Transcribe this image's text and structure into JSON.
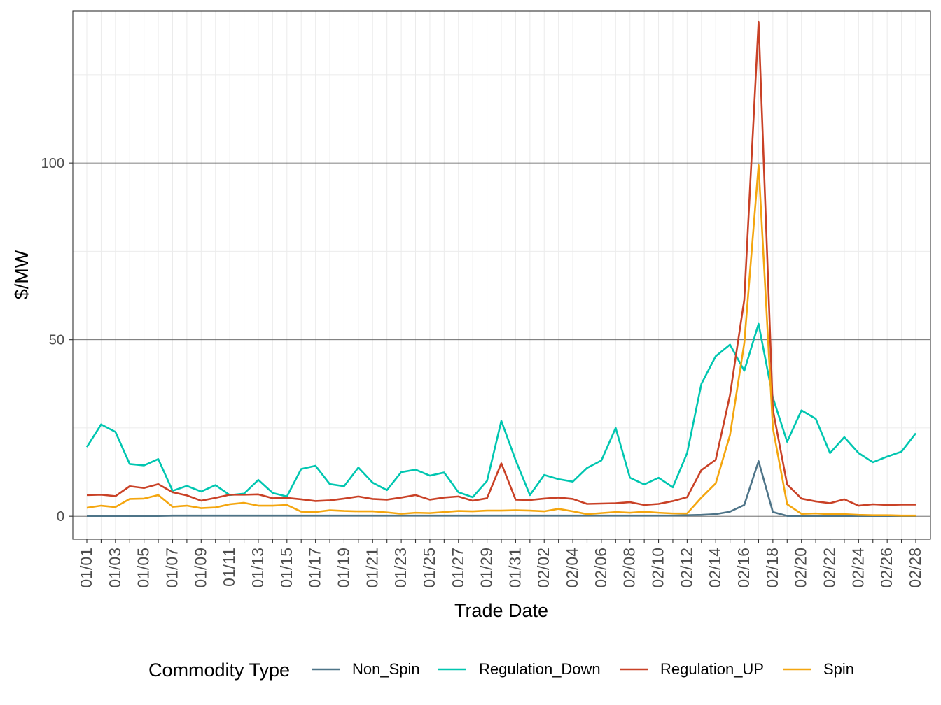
{
  "chart_data": {
    "type": "line",
    "xlabel": "Trade Date",
    "ylabel": "$/MW",
    "ylim": [
      -6.5,
      143
    ],
    "y_major_ticks": [
      0,
      50,
      100
    ],
    "y_tick_labels": [
      "0",
      "50",
      "100"
    ],
    "grid": true,
    "legend_position": "bottom",
    "legend_title": "Commodity Type",
    "x": [
      "01/01",
      "01/02",
      "01/03",
      "01/04",
      "01/05",
      "01/06",
      "01/07",
      "01/08",
      "01/09",
      "01/10",
      "01/11",
      "01/12",
      "01/13",
      "01/14",
      "01/15",
      "01/16",
      "01/17",
      "01/18",
      "01/19",
      "01/20",
      "01/21",
      "01/22",
      "01/23",
      "01/24",
      "01/25",
      "01/26",
      "01/27",
      "01/28",
      "01/29",
      "01/30",
      "01/31",
      "02/01",
      "02/02",
      "02/03",
      "02/04",
      "02/05",
      "02/06",
      "02/07",
      "02/08",
      "02/09",
      "02/10",
      "02/11",
      "02/12",
      "02/13",
      "02/14",
      "02/15",
      "02/16",
      "02/17",
      "02/18",
      "02/19",
      "02/20",
      "02/21",
      "02/22",
      "02/23",
      "02/24",
      "02/25",
      "02/26",
      "02/27",
      "02/28"
    ],
    "x_tick_labels": [
      "01/01",
      "01/03",
      "01/05",
      "01/07",
      "01/09",
      "01/11",
      "01/13",
      "01/15",
      "01/17",
      "01/19",
      "01/21",
      "01/23",
      "01/25",
      "01/27",
      "01/29",
      "01/31",
      "02/02",
      "02/04",
      "02/06",
      "02/08",
      "02/10",
      "02/12",
      "02/14",
      "02/16",
      "02/18",
      "02/20",
      "02/22",
      "02/24",
      "02/26",
      "02/28"
    ],
    "series": [
      {
        "name": "Non_Spin",
        "color": "#4e7488",
        "values": [
          0.1,
          0.1,
          0.1,
          0.1,
          0.1,
          0.1,
          0.2,
          0.2,
          0.2,
          0.2,
          0.2,
          0.2,
          0.2,
          0.2,
          0.2,
          0.2,
          0.2,
          0.2,
          0.2,
          0.2,
          0.2,
          0.2,
          0.2,
          0.2,
          0.2,
          0.2,
          0.2,
          0.2,
          0.2,
          0.2,
          0.2,
          0.2,
          0.2,
          0.2,
          0.2,
          0.2,
          0.2,
          0.2,
          0.2,
          0.2,
          0.2,
          0.2,
          0.3,
          0.4,
          0.6,
          1.3,
          3.2,
          15.6,
          1.2,
          0.1,
          0.1,
          0.1,
          0.1,
          0.1,
          0.1,
          0.1,
          0.1,
          0.1,
          0.1
        ]
      },
      {
        "name": "Regulation_Down",
        "color": "#00c6b0",
        "values": [
          19.6,
          26.0,
          23.9,
          14.8,
          14.4,
          16.2,
          7.2,
          8.6,
          7.0,
          8.8,
          6.0,
          6.4,
          10.3,
          6.6,
          5.6,
          13.4,
          14.3,
          9.1,
          8.5,
          13.8,
          9.5,
          7.4,
          12.5,
          13.2,
          11.5,
          12.4,
          6.8,
          5.4,
          10.0,
          27.0,
          15.9,
          6.0,
          11.7,
          10.5,
          9.8,
          13.7,
          15.8,
          25.0,
          10.9,
          9.0,
          10.9,
          8.2,
          17.9,
          37.5,
          45.3,
          48.6,
          41.2,
          54.5,
          33.6,
          21.1,
          30.0,
          27.6,
          17.9,
          22.4,
          17.9,
          15.3,
          16.9,
          18.3,
          23.5
        ]
      },
      {
        "name": "Regulation_UP",
        "color": "#c94126",
        "values": [
          6.0,
          6.1,
          5.7,
          8.5,
          8.0,
          9.1,
          6.8,
          5.9,
          4.4,
          5.2,
          6.1,
          6.1,
          6.2,
          5.1,
          5.2,
          4.8,
          4.3,
          4.5,
          5.0,
          5.6,
          4.9,
          4.7,
          5.3,
          6.0,
          4.7,
          5.3,
          5.6,
          4.4,
          5.1,
          15.0,
          4.7,
          4.6,
          5.0,
          5.3,
          4.9,
          3.5,
          3.6,
          3.7,
          4.0,
          3.2,
          3.5,
          4.3,
          5.4,
          13.1,
          16.0,
          34.3,
          61.3,
          140.0,
          30.2,
          9.0,
          5.0,
          4.2,
          3.7,
          4.8,
          3.0,
          3.4,
          3.2,
          3.3,
          3.3
        ]
      },
      {
        "name": "Spin",
        "color": "#f4a60f",
        "values": [
          2.4,
          3.0,
          2.6,
          4.9,
          5.0,
          6.0,
          2.7,
          3.0,
          2.3,
          2.5,
          3.4,
          3.8,
          3.0,
          3.0,
          3.2,
          1.3,
          1.2,
          1.7,
          1.5,
          1.4,
          1.4,
          1.1,
          0.7,
          1.0,
          0.9,
          1.2,
          1.5,
          1.4,
          1.6,
          1.6,
          1.7,
          1.6,
          1.4,
          2.1,
          1.4,
          0.6,
          0.9,
          1.2,
          1.0,
          1.3,
          1.0,
          0.8,
          0.8,
          5.3,
          9.3,
          23.0,
          49.0,
          99.4,
          25.0,
          3.4,
          0.7,
          0.8,
          0.6,
          0.6,
          0.4,
          0.3,
          0.3,
          0.2,
          0.2
        ]
      }
    ]
  }
}
